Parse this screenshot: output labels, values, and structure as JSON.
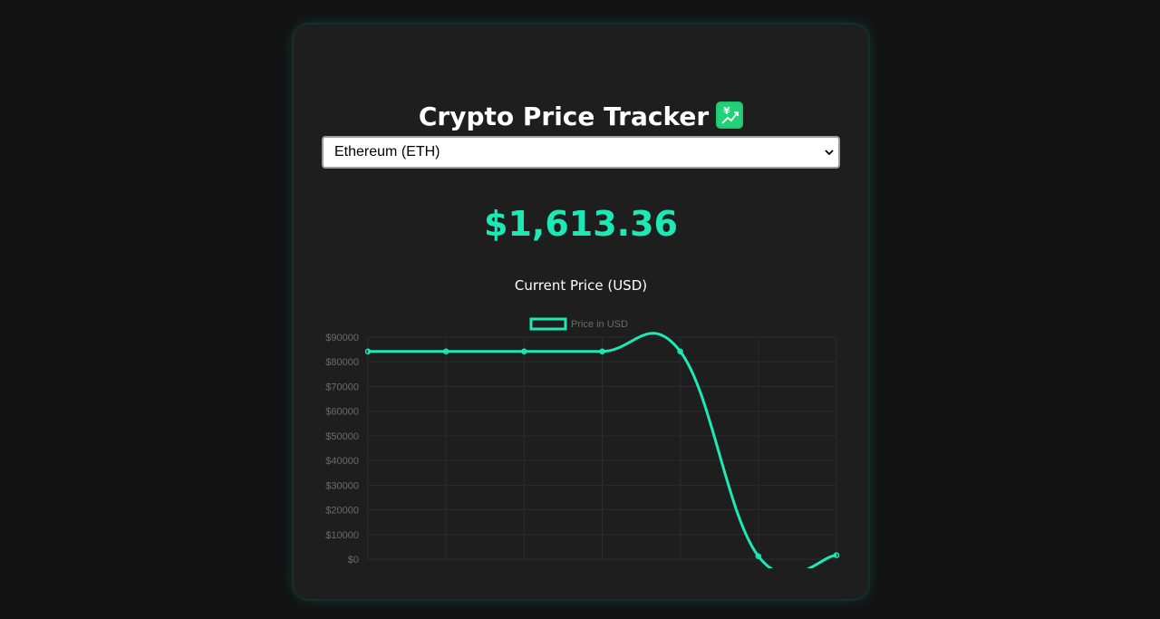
{
  "header": {
    "title": "Crypto Price Tracker",
    "title_icon": "chart-increasing-with-yen-icon"
  },
  "selector": {
    "selected": "Ethereum (ETH)"
  },
  "price": {
    "value": "$1,613.36"
  },
  "chart_section": {
    "subtitle": "Current Price (USD)"
  },
  "colors": {
    "accent": "#1de9b6",
    "background": "#121212",
    "card": "#1e1e1e",
    "grid": "#2c2c2c",
    "tick": "#6b6b6b"
  },
  "chart_data": {
    "type": "line",
    "legend": {
      "label": "Price in USD",
      "position": "top"
    },
    "y_ticks": [
      "$0",
      "$10000",
      "$20000",
      "$30000",
      "$40000",
      "$50000",
      "$60000",
      "$70000",
      "$80000",
      "$90000"
    ],
    "ylim": [
      0,
      90000
    ],
    "grid": true,
    "series": [
      {
        "name": "Price in USD",
        "values": [
          84200,
          84200,
          84200,
          84200,
          84200,
          1200,
          1613
        ]
      }
    ]
  }
}
